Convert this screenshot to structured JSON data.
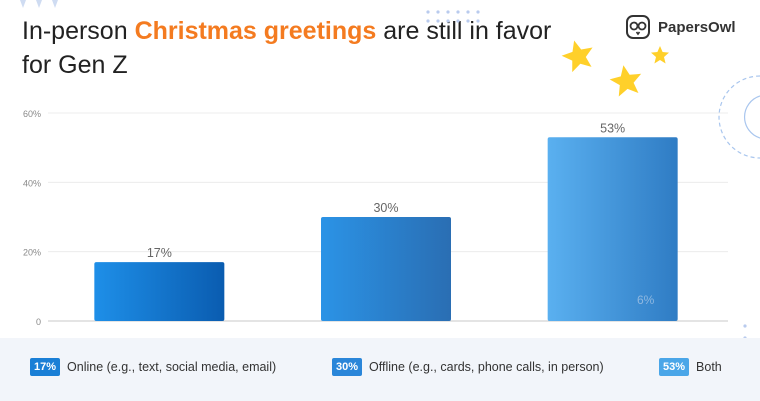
{
  "header": {
    "title_prefix": "In-person ",
    "title_highlight": "Christmas greetings",
    "title_suffix": " are still in favor for Gen Z",
    "brand": "PapersOwl",
    "brand_icon": "owl-icon"
  },
  "colors": {
    "accent": "#f47b20",
    "online": "#1a7fd6",
    "offline": "#2a86d9",
    "both": "#4aa6e8",
    "legend_bg": "#f2f5fa",
    "star": "#ffd02a"
  },
  "chart_data": {
    "type": "bar",
    "title": "In-person Christmas greetings are still in favor for Gen Z",
    "categories": [
      "Online (e.g., text, social media, email)",
      "Offline (e.g., cards, phone calls, in person)",
      "Both"
    ],
    "values": [
      17,
      30,
      53
    ],
    "value_labels": [
      "17%",
      "30%",
      "53%"
    ],
    "yticks": [
      "0",
      "20%",
      "40%",
      "60%"
    ],
    "ytick_values": [
      0,
      20,
      40,
      60
    ],
    "ylim": [
      0,
      60
    ],
    "xlabel": "",
    "ylabel": "",
    "grid": true,
    "legend_position": "bottom",
    "annotation": "6%"
  },
  "legend": [
    {
      "badge": "17%",
      "label": "Online (e.g., text, social media, email)"
    },
    {
      "badge": "30%",
      "label": "Offline (e.g., cards, phone calls, in person)"
    },
    {
      "badge": "53%",
      "label": "Both"
    }
  ]
}
